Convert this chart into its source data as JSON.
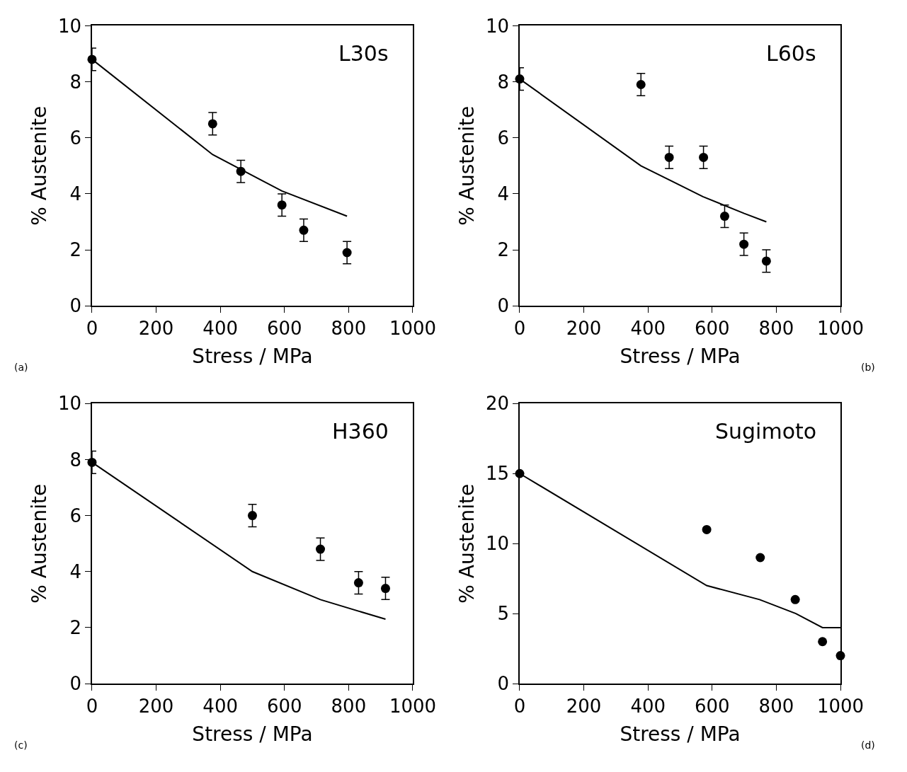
{
  "chart_data": [
    {
      "type": "scatter",
      "title": "L30s",
      "xlabel": "Stress / MPa",
      "ylabel": "% Austenite",
      "xlim": [
        0,
        1000
      ],
      "ylim": [
        0,
        10
      ],
      "xticks": [
        0,
        200,
        400,
        600,
        800,
        1000
      ],
      "yticks": [
        0,
        2,
        4,
        6,
        8,
        10
      ],
      "annotations": [
        "(a)"
      ],
      "series": [
        {
          "marker": "circle",
          "color": "#000000",
          "x": [
            0,
            376,
            464,
            592,
            660,
            795
          ],
          "values": [
            8.8,
            6.5,
            4.8,
            3.6,
            2.7,
            1.9
          ],
          "errors": [
            0.4,
            0.4,
            0.4,
            0.4,
            0.4,
            0.4
          ]
        },
        {
          "type": "line",
          "marker": "none",
          "color": "#000000",
          "x": [
            0,
            376,
            592,
            795
          ],
          "values": [
            8.8,
            5.4,
            4.1,
            3.2
          ]
        }
      ]
    },
    {
      "type": "scatter",
      "title": "L60s",
      "xlabel": "Stress / MPa",
      "ylabel": "% Austenite",
      "xlim": [
        0,
        1000
      ],
      "ylim": [
        0,
        10
      ],
      "xticks": [
        0,
        200,
        400,
        600,
        800,
        1000
      ],
      "yticks": [
        0,
        2,
        4,
        6,
        8,
        10
      ],
      "annotations": [
        "(b)"
      ],
      "series": [
        {
          "marker": "circle",
          "color": "#000000",
          "x": [
            0,
            378,
            466,
            573,
            639,
            699,
            769
          ],
          "values": [
            8.1,
            7.9,
            5.3,
            5.3,
            3.2,
            2.2,
            1.6
          ],
          "errors": [
            0.4,
            0.4,
            0.4,
            0.4,
            0.4,
            0.4,
            0.4
          ]
        },
        {
          "type": "line",
          "marker": "none",
          "color": "#000000",
          "x": [
            0,
            378,
            571,
            700,
            769
          ],
          "values": [
            8.1,
            5.0,
            3.9,
            3.3,
            3.0
          ]
        }
      ]
    },
    {
      "type": "scatter",
      "title": "H360",
      "xlabel": "Stress / MPa",
      "ylabel": "% Austenite",
      "xlim": [
        0,
        1000
      ],
      "ylim": [
        0,
        10
      ],
      "xticks": [
        0,
        200,
        400,
        600,
        800,
        1000
      ],
      "yticks": [
        0,
        2,
        4,
        6,
        8,
        10
      ],
      "annotations": [
        "(c)"
      ],
      "series": [
        {
          "marker": "circle",
          "color": "#000000",
          "x": [
            0,
            500,
            712,
            831,
            915
          ],
          "values": [
            7.9,
            6.0,
            4.8,
            3.6,
            3.4
          ],
          "errors": [
            0.4,
            0.4,
            0.4,
            0.4,
            0.4
          ]
        },
        {
          "type": "line",
          "marker": "none",
          "color": "#000000",
          "x": [
            0,
            500,
            712,
            915
          ],
          "values": [
            7.9,
            4.0,
            3.0,
            2.3
          ]
        }
      ]
    },
    {
      "type": "scatter",
      "title": "Sugimoto",
      "xlabel": "Stress / MPa",
      "ylabel": "% Austenite",
      "xlim": [
        0,
        1000
      ],
      "ylim": [
        0,
        20
      ],
      "xticks": [
        0,
        200,
        400,
        600,
        800,
        1000
      ],
      "yticks": [
        0,
        5,
        10,
        15,
        20
      ],
      "annotations": [
        "(d)"
      ],
      "series": [
        {
          "marker": "circle",
          "color": "#000000",
          "x": [
            0,
            583,
            750,
            859,
            944,
            1000
          ],
          "values": [
            15,
            11,
            9,
            6,
            3,
            2
          ]
        },
        {
          "type": "line",
          "marker": "none",
          "color": "#000000",
          "x": [
            0,
            583,
            748,
            861,
            944,
            1000
          ],
          "values": [
            15,
            7,
            6,
            5,
            4,
            4
          ]
        }
      ]
    }
  ]
}
